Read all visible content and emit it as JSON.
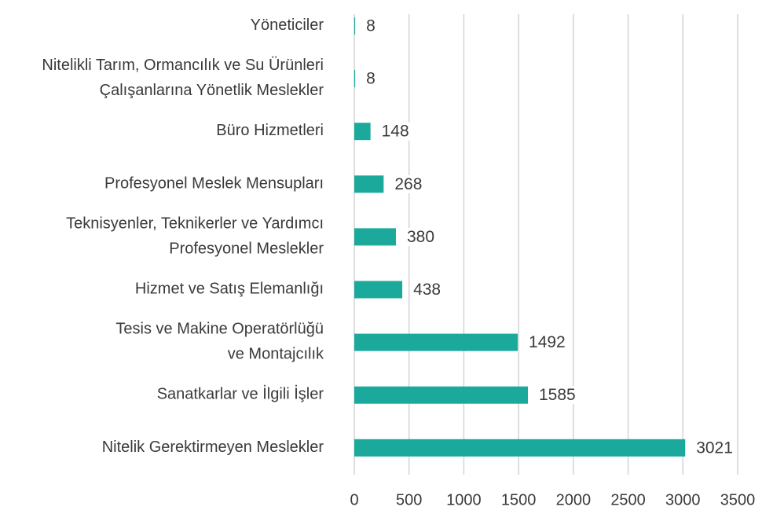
{
  "chart_data": {
    "type": "barh",
    "categories": [
      "Yöneticiler",
      "Nitelikli Tarım, Ormancılık ve Su Ürünleri\nÇalışanlarına Yönetlik Meslekler",
      "Büro Hizmetleri",
      "Profesyonel Meslek Mensupları",
      "Teknisyenler, Teknikerler ve Yardımcı\nProfesyonel Meslekler",
      "Hizmet ve Satış Elemanlığı",
      "Tesis ve Makine Operatörlüğü\nve Montajcılık",
      "Sanatkarlar ve İlgili İşler",
      "Nitelik Gerektirmeyen Meslekler"
    ],
    "values": [
      8,
      8,
      148,
      268,
      380,
      438,
      1492,
      1585,
      3021
    ],
    "color": "#1ba99c",
    "xlim": [
      0,
      3500
    ],
    "xticks": [
      0,
      500,
      1000,
      1500,
      2000,
      2500,
      3000,
      3500
    ],
    "grid": true
  }
}
